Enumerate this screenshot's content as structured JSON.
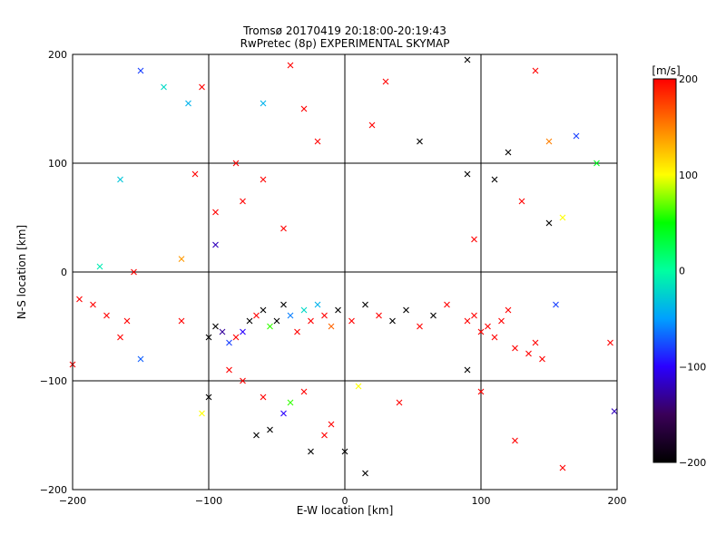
{
  "chart_data": {
    "type": "scatter",
    "title": "Tromsø 20170419 20:18:00-20:19:43",
    "subtitle": "RwPretec (8p) EXPERIMENTAL SKYMAP",
    "xlabel": "E-W location [km]",
    "ylabel": "N-S location [km]",
    "xlim": [
      -200,
      200
    ],
    "ylim": [
      -200,
      200
    ],
    "x_ticks": [
      -200,
      -100,
      0,
      100,
      200
    ],
    "y_ticks": [
      -200,
      -100,
      0,
      100,
      200
    ],
    "grid": true,
    "colorbar": {
      "label": "[m/s]",
      "range": [
        -200,
        200
      ],
      "ticks": [
        -200,
        -100,
        0,
        100,
        200
      ],
      "colors": [
        "#000000",
        "#3a0058",
        "#2a00ff",
        "#00a0ff",
        "#00ffa0",
        "#00ff00",
        "#ffff00",
        "#ff8000",
        "#ff0000"
      ]
    },
    "markers": [
      "point",
      "x"
    ],
    "series": [
      {
        "points": [
          {
            "x": -150,
            "y": 185,
            "v": -80,
            "m": "x"
          },
          {
            "x": -133,
            "y": 170,
            "v": -20,
            "m": "x"
          },
          {
            "x": -115,
            "y": 155,
            "v": -40,
            "m": "x"
          },
          {
            "x": -105,
            "y": 170,
            "v": 200,
            "m": "x"
          },
          {
            "x": -80,
            "y": 100,
            "v": 200,
            "m": "x"
          },
          {
            "x": -60,
            "y": 155,
            "v": -40,
            "m": "x"
          },
          {
            "x": -40,
            "y": 190,
            "v": 200,
            "m": "x"
          },
          {
            "x": -30,
            "y": 150,
            "v": 200,
            "m": "x"
          },
          {
            "x": -20,
            "y": 120,
            "v": 200,
            "m": "x"
          },
          {
            "x": 20,
            "y": 135,
            "v": 200,
            "m": "x"
          },
          {
            "x": 30,
            "y": 175,
            "v": 200,
            "m": "x"
          },
          {
            "x": 55,
            "y": 120,
            "v": -200,
            "m": "x"
          },
          {
            "x": 90,
            "y": 195,
            "v": -200,
            "m": "x"
          },
          {
            "x": 120,
            "y": 110,
            "v": -200,
            "m": "x"
          },
          {
            "x": 140,
            "y": 185,
            "v": 200,
            "m": "x"
          },
          {
            "x": 150,
            "y": 120,
            "v": 150,
            "m": "x"
          },
          {
            "x": 170,
            "y": 125,
            "v": -80,
            "m": "x"
          },
          {
            "x": -165,
            "y": 85,
            "v": -30,
            "m": "x"
          },
          {
            "x": -110,
            "y": 90,
            "v": 200,
            "m": "x"
          },
          {
            "x": -95,
            "y": 55,
            "v": 200,
            "m": "x"
          },
          {
            "x": -75,
            "y": 65,
            "v": 200,
            "m": "x"
          },
          {
            "x": -60,
            "y": 85,
            "v": 200,
            "m": "x"
          },
          {
            "x": -45,
            "y": 40,
            "v": 200,
            "m": "x"
          },
          {
            "x": -95,
            "y": 25,
            "v": -120,
            "m": "x"
          },
          {
            "x": -120,
            "y": 12,
            "v": 140,
            "m": "x"
          },
          {
            "x": -180,
            "y": 5,
            "v": -10,
            "m": "x"
          },
          {
            "x": -155,
            "y": 0,
            "v": 200,
            "m": "x"
          },
          {
            "x": 90,
            "y": 90,
            "v": -200,
            "m": "x"
          },
          {
            "x": 110,
            "y": 85,
            "v": -200,
            "m": "x"
          },
          {
            "x": 130,
            "y": 65,
            "v": 200,
            "m": "x"
          },
          {
            "x": 150,
            "y": 45,
            "v": -200,
            "m": "x"
          },
          {
            "x": 160,
            "y": 50,
            "v": 100,
            "m": "x"
          },
          {
            "x": 185,
            "y": 100,
            "v": 40,
            "m": "x"
          },
          {
            "x": 95,
            "y": 30,
            "v": 200,
            "m": "x"
          },
          {
            "x": -195,
            "y": -25,
            "v": 200,
            "m": "x"
          },
          {
            "x": -185,
            "y": -30,
            "v": 200,
            "m": "x"
          },
          {
            "x": -175,
            "y": -40,
            "v": 200,
            "m": "x"
          },
          {
            "x": -165,
            "y": -60,
            "v": 200,
            "m": "x"
          },
          {
            "x": -160,
            "y": -45,
            "v": 200,
            "m": "x"
          },
          {
            "x": -150,
            "y": -80,
            "v": -70,
            "m": "x"
          },
          {
            "x": -200,
            "y": -85,
            "v": 200,
            "m": "x"
          },
          {
            "x": -120,
            "y": -45,
            "v": 200,
            "m": "x"
          },
          {
            "x": -100,
            "y": -60,
            "v": -200,
            "m": "x"
          },
          {
            "x": -95,
            "y": -50,
            "v": -200,
            "m": "x"
          },
          {
            "x": -90,
            "y": -55,
            "v": -130,
            "m": "x"
          },
          {
            "x": -85,
            "y": -65,
            "v": -80,
            "m": "x"
          },
          {
            "x": -80,
            "y": -60,
            "v": 200,
            "m": "x"
          },
          {
            "x": -75,
            "y": -55,
            "v": -100,
            "m": "x"
          },
          {
            "x": -70,
            "y": -45,
            "v": -200,
            "m": "x"
          },
          {
            "x": -65,
            "y": -40,
            "v": 200,
            "m": "x"
          },
          {
            "x": -60,
            "y": -35,
            "v": -200,
            "m": "x"
          },
          {
            "x": -55,
            "y": -50,
            "v": 60,
            "m": "x"
          },
          {
            "x": -50,
            "y": -45,
            "v": -200,
            "m": "x"
          },
          {
            "x": -45,
            "y": -30,
            "v": -200,
            "m": "x"
          },
          {
            "x": -40,
            "y": -40,
            "v": -60,
            "m": "x"
          },
          {
            "x": -35,
            "y": -55,
            "v": 200,
            "m": "x"
          },
          {
            "x": -30,
            "y": -35,
            "v": -20,
            "m": "x"
          },
          {
            "x": -25,
            "y": -45,
            "v": 200,
            "m": "x"
          },
          {
            "x": -20,
            "y": -30,
            "v": -40,
            "m": "x"
          },
          {
            "x": -15,
            "y": -40,
            "v": 200,
            "m": "x"
          },
          {
            "x": -10,
            "y": -50,
            "v": 160,
            "m": "x"
          },
          {
            "x": -5,
            "y": -35,
            "v": -200,
            "m": "x"
          },
          {
            "x": 5,
            "y": -45,
            "v": 200,
            "m": "x"
          },
          {
            "x": 15,
            "y": -30,
            "v": -200,
            "m": "x"
          },
          {
            "x": 25,
            "y": -40,
            "v": 200,
            "m": "x"
          },
          {
            "x": 35,
            "y": -45,
            "v": -200,
            "m": "x"
          },
          {
            "x": 45,
            "y": -35,
            "v": -200,
            "m": "x"
          },
          {
            "x": 55,
            "y": -50,
            "v": 200,
            "m": "x"
          },
          {
            "x": 65,
            "y": -40,
            "v": -200,
            "m": "x"
          },
          {
            "x": 75,
            "y": -30,
            "v": 200,
            "m": "x"
          },
          {
            "x": 90,
            "y": -45,
            "v": 200,
            "m": "x"
          },
          {
            "x": 95,
            "y": -40,
            "v": 200,
            "m": "x"
          },
          {
            "x": 100,
            "y": -55,
            "v": 200,
            "m": "x"
          },
          {
            "x": 105,
            "y": -50,
            "v": 200,
            "m": "x"
          },
          {
            "x": 110,
            "y": -60,
            "v": 200,
            "m": "x"
          },
          {
            "x": 115,
            "y": -45,
            "v": 200,
            "m": "x"
          },
          {
            "x": 120,
            "y": -35,
            "v": 200,
            "m": "x"
          },
          {
            "x": 125,
            "y": -70,
            "v": 200,
            "m": "x"
          },
          {
            "x": 135,
            "y": -75,
            "v": 200,
            "m": "x"
          },
          {
            "x": 140,
            "y": -65,
            "v": 200,
            "m": "x"
          },
          {
            "x": 145,
            "y": -80,
            "v": 200,
            "m": "x"
          },
          {
            "x": 155,
            "y": -30,
            "v": -80,
            "m": "x"
          },
          {
            "x": 195,
            "y": -65,
            "v": 200,
            "m": "x"
          },
          {
            "x": 90,
            "y": -90,
            "v": -200,
            "m": "x"
          },
          {
            "x": -85,
            "y": -90,
            "v": 200,
            "m": "x"
          },
          {
            "x": -75,
            "y": -100,
            "v": 200,
            "m": "x"
          },
          {
            "x": -100,
            "y": -115,
            "v": -200,
            "m": "x"
          },
          {
            "x": -105,
            "y": -130,
            "v": 100,
            "m": "x"
          },
          {
            "x": -60,
            "y": -115,
            "v": 200,
            "m": "x"
          },
          {
            "x": -45,
            "y": -130,
            "v": -100,
            "m": "x"
          },
          {
            "x": -40,
            "y": -120,
            "v": 60,
            "m": "x"
          },
          {
            "x": -30,
            "y": -110,
            "v": 200,
            "m": "x"
          },
          {
            "x": -55,
            "y": -145,
            "v": -200,
            "m": "x"
          },
          {
            "x": -65,
            "y": -150,
            "v": -200,
            "m": "x"
          },
          {
            "x": -25,
            "y": -165,
            "v": -200,
            "m": "x"
          },
          {
            "x": -15,
            "y": -150,
            "v": 200,
            "m": "x"
          },
          {
            "x": 0,
            "y": -165,
            "v": -200,
            "m": "x"
          },
          {
            "x": 15,
            "y": -185,
            "v": -200,
            "m": "x"
          },
          {
            "x": 10,
            "y": -105,
            "v": 100,
            "m": "x"
          },
          {
            "x": 40,
            "y": -120,
            "v": 200,
            "m": "x"
          },
          {
            "x": 100,
            "y": -110,
            "v": 200,
            "m": "x"
          },
          {
            "x": 125,
            "y": -155,
            "v": 200,
            "m": "x"
          },
          {
            "x": 160,
            "y": -180,
            "v": 200,
            "m": "x"
          },
          {
            "x": 198,
            "y": -128,
            "v": -120,
            "m": "x"
          },
          {
            "x": -10,
            "y": -140,
            "v": 200,
            "m": "x"
          }
        ]
      }
    ]
  }
}
